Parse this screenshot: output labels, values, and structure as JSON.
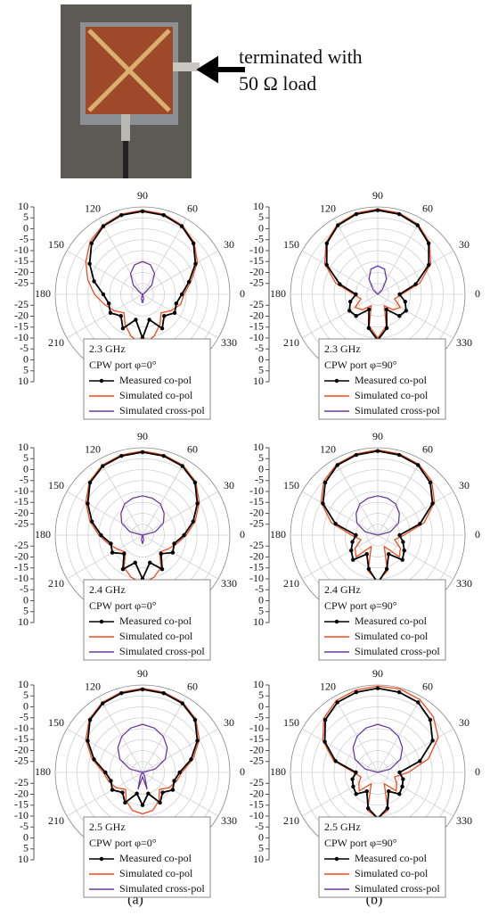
{
  "photo": {
    "annotation_lines": [
      "terminated with",
      "50 Ω load"
    ]
  },
  "panel_labels": [
    "(a)",
    "(b)"
  ],
  "chart_data": [
    {
      "type": "polar",
      "subtitle": "2.3 GHz",
      "note": "CPW port φ=0°",
      "x": [
        0,
        15,
        30,
        45,
        60,
        75,
        90,
        105,
        120,
        135,
        150,
        165,
        180,
        195,
        210,
        225,
        240,
        255,
        270,
        285,
        300,
        315,
        330,
        345
      ],
      "xticks": [
        0,
        30,
        60,
        90,
        120,
        150,
        180,
        210,
        330
      ],
      "ylim": [
        -30,
        10
      ],
      "yticks": [
        -25,
        -20,
        -15,
        -10,
        -5,
        0,
        5,
        10
      ],
      "grid": true,
      "series": [
        {
          "name": "Measured co-pol",
          "color": "#000000",
          "values": [
            -12,
            -8,
            -2,
            3,
            6,
            7.5,
            8,
            7.5,
            6,
            3,
            -2,
            -7,
            -12,
            -14,
            -13,
            -16,
            -12,
            -18,
            -10,
            -18,
            -12,
            -16,
            -13,
            -14
          ]
        },
        {
          "name": "Simulated co-pol",
          "color": "#f04a1a",
          "values": [
            -11,
            -7,
            -1,
            3.5,
            6.5,
            8,
            8.5,
            8,
            6.5,
            4,
            0,
            -4,
            -8,
            -12,
            -15,
            -18,
            -14,
            -10,
            -7,
            -10,
            -14,
            -18,
            -15,
            -12
          ]
        },
        {
          "name": "Simulated cross-pol",
          "color": "#6a3aa0",
          "values": [
            -30,
            -30,
            -29,
            -24,
            -19,
            -16,
            -15,
            -16,
            -19,
            -24,
            -29,
            -30,
            -30,
            -30,
            -30,
            -30,
            -30,
            -28,
            -26,
            -28,
            -30,
            -30,
            -30,
            -30
          ]
        }
      ]
    },
    {
      "type": "polar",
      "subtitle": "2.3 GHz",
      "note": "CPW port φ=90°",
      "x": [
        0,
        15,
        30,
        45,
        60,
        75,
        90,
        105,
        120,
        135,
        150,
        165,
        180,
        195,
        210,
        225,
        240,
        255,
        270,
        285,
        300,
        315,
        330,
        345
      ],
      "xticks": [
        0,
        30,
        60,
        90,
        120,
        150,
        180,
        210,
        330
      ],
      "ylim": [
        -30,
        10
      ],
      "yticks": [
        -25,
        -20,
        -15,
        -10,
        -5,
        0,
        5,
        10
      ],
      "grid": true,
      "series": [
        {
          "name": "Measured co-pol",
          "color": "#000000",
          "values": [
            -20,
            -12,
            -3,
            3,
            6.5,
            8,
            8.5,
            8,
            6.5,
            3,
            -3,
            -12,
            -20,
            -17,
            -15,
            -16,
            -22,
            -14,
            -9,
            -14,
            -22,
            -16,
            -15,
            -17
          ]
        },
        {
          "name": "Simulated co-pol",
          "color": "#f04a1a",
          "values": [
            -19,
            -10,
            -2,
            3.5,
            7,
            8.5,
            9,
            8.5,
            7,
            3.5,
            -2,
            -10,
            -19,
            -22,
            -18,
            -20,
            -24,
            -15,
            -10,
            -15,
            -24,
            -20,
            -18,
            -22
          ]
        },
        {
          "name": "Simulated cross-pol",
          "color": "#6a3aa0",
          "values": [
            -30,
            -30,
            -30,
            -27,
            -22,
            -18,
            -17,
            -18,
            -22,
            -27,
            -30,
            -30,
            -30,
            -30,
            -30,
            -30,
            -30,
            -30,
            -30,
            -30,
            -30,
            -30,
            -30,
            -30
          ]
        }
      ]
    },
    {
      "type": "polar",
      "subtitle": "2.4 GHz",
      "note": "CPW port φ=0°",
      "x": [
        0,
        15,
        30,
        45,
        60,
        75,
        90,
        105,
        120,
        135,
        150,
        165,
        180,
        195,
        210,
        225,
        240,
        255,
        270,
        285,
        300,
        315,
        330,
        345
      ],
      "xticks": [
        0,
        30,
        60,
        90,
        120,
        150,
        180,
        210,
        330
      ],
      "ylim": [
        -30,
        10
      ],
      "yticks": [
        -25,
        -20,
        -15,
        -10,
        -5,
        0,
        5,
        10
      ],
      "grid": true,
      "series": [
        {
          "name": "Measured co-pol",
          "color": "#000000",
          "values": [
            -11,
            -6,
            -1,
            4,
            6.5,
            7.5,
            8,
            7.5,
            6.5,
            4,
            -1,
            -6,
            -11,
            -15,
            -14,
            -18,
            -12,
            -17,
            -10,
            -17,
            -12,
            -18,
            -14,
            -15
          ]
        },
        {
          "name": "Simulated co-pol",
          "color": "#f04a1a",
          "values": [
            -10,
            -5,
            0,
            4.5,
            7,
            8,
            8.5,
            8,
            7,
            4.5,
            0,
            -5,
            -10,
            -14,
            -17,
            -19,
            -13,
            -10,
            -8,
            -10,
            -13,
            -19,
            -17,
            -14
          ]
        },
        {
          "name": "Simulated cross-pol",
          "color": "#6a3aa0",
          "values": [
            -30,
            -24,
            -19,
            -16,
            -13.5,
            -12.5,
            -12,
            -12.5,
            -13.5,
            -16,
            -19,
            -24,
            -30,
            -30,
            -30,
            -30,
            -30,
            -28,
            -26,
            -28,
            -30,
            -30,
            -30,
            -30
          ]
        }
      ]
    },
    {
      "type": "polar",
      "subtitle": "2.4 GHz",
      "note": "CPW port φ=90°",
      "x": [
        0,
        15,
        30,
        45,
        60,
        75,
        90,
        105,
        120,
        135,
        150,
        165,
        180,
        195,
        210,
        225,
        240,
        255,
        270,
        285,
        300,
        315,
        330,
        345
      ],
      "xticks": [
        0,
        30,
        60,
        90,
        120,
        150,
        180,
        210,
        330
      ],
      "ylim": [
        -30,
        10
      ],
      "yticks": [
        -25,
        -20,
        -15,
        -10,
        -5,
        0,
        5,
        10
      ],
      "grid": true,
      "series": [
        {
          "name": "Measured co-pol",
          "color": "#000000",
          "values": [
            -20,
            -10,
            -1,
            4,
            7,
            8,
            8.5,
            8,
            7,
            4,
            -1,
            -10,
            -20,
            -18,
            -16,
            -14,
            -20,
            -14,
            -8,
            -14,
            -20,
            -14,
            -16,
            -18
          ]
        },
        {
          "name": "Simulated co-pol",
          "color": "#f04a1a",
          "values": [
            -18,
            -8,
            0,
            5,
            7.5,
            8.5,
            9,
            8.5,
            7.5,
            5,
            0,
            -8,
            -18,
            -22,
            -18,
            -16,
            -24,
            -13,
            -9,
            -13,
            -24,
            -16,
            -18,
            -22
          ]
        },
        {
          "name": "Simulated cross-pol",
          "color": "#6a3aa0",
          "values": [
            -30,
            -24,
            -19,
            -16,
            -13.5,
            -12.5,
            -12,
            -12.5,
            -13.5,
            -16,
            -19,
            -24,
            -30,
            -30,
            -30,
            -30,
            -30,
            -30,
            -30,
            -30,
            -30,
            -30,
            -30,
            -30
          ]
        }
      ]
    },
    {
      "type": "polar",
      "subtitle": "2.5 GHz",
      "note": "CPW port φ=0°",
      "x": [
        0,
        15,
        30,
        45,
        60,
        75,
        90,
        105,
        120,
        135,
        150,
        165,
        180,
        195,
        210,
        225,
        240,
        255,
        270,
        285,
        300,
        315,
        330,
        345
      ],
      "xticks": [
        0,
        30,
        60,
        90,
        120,
        150,
        180,
        210,
        330
      ],
      "ylim": [
        -30,
        10
      ],
      "yticks": [
        -25,
        -20,
        -15,
        -10,
        -5,
        0,
        5,
        10
      ],
      "grid": true,
      "series": [
        {
          "name": "Measured co-pol",
          "color": "#000000",
          "values": [
            -13,
            -7,
            -1,
            4,
            6.5,
            7.5,
            8,
            7.5,
            6.5,
            4,
            -1,
            -7,
            -13,
            -15,
            -14,
            -17,
            -14,
            -20,
            -15,
            -20,
            -14,
            -17,
            -14,
            -15
          ]
        },
        {
          "name": "Simulated co-pol",
          "color": "#f04a1a",
          "values": [
            -12,
            -6,
            0,
            4.5,
            7,
            8,
            8.5,
            8,
            7,
            4.5,
            0,
            -6,
            -12,
            -14,
            -16,
            -19,
            -15,
            -12,
            -11,
            -12,
            -15,
            -19,
            -16,
            -14
          ]
        },
        {
          "name": "Simulated cross-pol",
          "color": "#6a3aa0",
          "values": [
            -30,
            -24,
            -18,
            -14,
            -11,
            -9,
            -8,
            -9,
            -11,
            -14,
            -18,
            -24,
            -30,
            -30,
            -30,
            -30,
            -28,
            -22,
            -28,
            -22,
            -28,
            -30,
            -30,
            -30
          ]
        }
      ]
    },
    {
      "type": "polar",
      "subtitle": "2.5 GHz",
      "note": "CPW port φ=90°",
      "x": [
        0,
        15,
        30,
        45,
        60,
        75,
        90,
        105,
        120,
        135,
        150,
        165,
        180,
        195,
        210,
        225,
        240,
        255,
        270,
        285,
        300,
        315,
        330,
        345
      ],
      "xticks": [
        0,
        30,
        60,
        90,
        120,
        150,
        180,
        210,
        330
      ],
      "ylim": [
        -30,
        10
      ],
      "yticks": [
        -25,
        -20,
        -15,
        -10,
        -5,
        0,
        5,
        10
      ],
      "grid": true,
      "series": [
        {
          "name": "Measured co-pol",
          "color": "#000000",
          "values": [
            -20,
            -10,
            -1,
            4,
            7,
            8,
            8.5,
            8,
            7,
            4,
            -2,
            -10,
            -20,
            -18,
            -17,
            -16,
            -20,
            -13,
            -9,
            -13,
            -20,
            -16,
            -17,
            -18
          ]
        },
        {
          "name": "Simulated co-pol",
          "color": "#f04a1a",
          "values": [
            -16,
            -6,
            2,
            6,
            8.5,
            9.5,
            9.5,
            9,
            8,
            5,
            -1,
            -9,
            -19,
            -22,
            -20,
            -18,
            -24,
            -12,
            -9,
            -12,
            -24,
            -18,
            -20,
            -22
          ]
        },
        {
          "name": "Simulated cross-pol",
          "color": "#6a3aa0",
          "values": [
            -30,
            -24,
            -18,
            -14,
            -11,
            -9,
            -8,
            -9,
            -11,
            -14,
            -18,
            -24,
            -30,
            -30,
            -30,
            -30,
            -30,
            -30,
            -30,
            -30,
            -30,
            -30,
            -30,
            -30
          ]
        }
      ]
    }
  ]
}
